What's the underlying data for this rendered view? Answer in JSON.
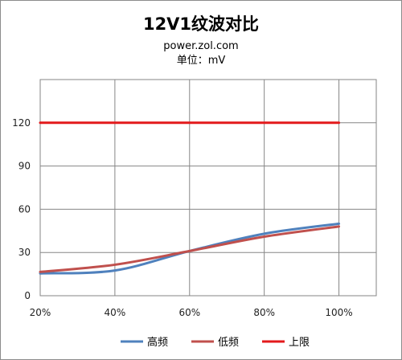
{
  "chart_data": {
    "type": "line",
    "title": "12V1纹波对比",
    "subtitle": "power.zol.com",
    "unit_label": "单位：mV",
    "categories": [
      "20%",
      "40%",
      "60%",
      "80%",
      "100%"
    ],
    "x": [
      20,
      40,
      60,
      80,
      100
    ],
    "xlim": [
      20,
      110
    ],
    "ylim": [
      0,
      150
    ],
    "yticks": [
      0,
      30,
      60,
      90,
      120
    ],
    "series": [
      {
        "name": "高频",
        "color": "#4F81BD",
        "values": [
          15.5,
          17.5,
          31,
          43,
          50
        ]
      },
      {
        "name": "低频",
        "color": "#C0504D",
        "values": [
          16.5,
          21.5,
          31,
          41,
          48
        ]
      },
      {
        "name": "上限",
        "color": "#E31A1C",
        "values": [
          120,
          120,
          120,
          120,
          120
        ]
      }
    ],
    "grid": true,
    "legend_position": "bottom"
  }
}
